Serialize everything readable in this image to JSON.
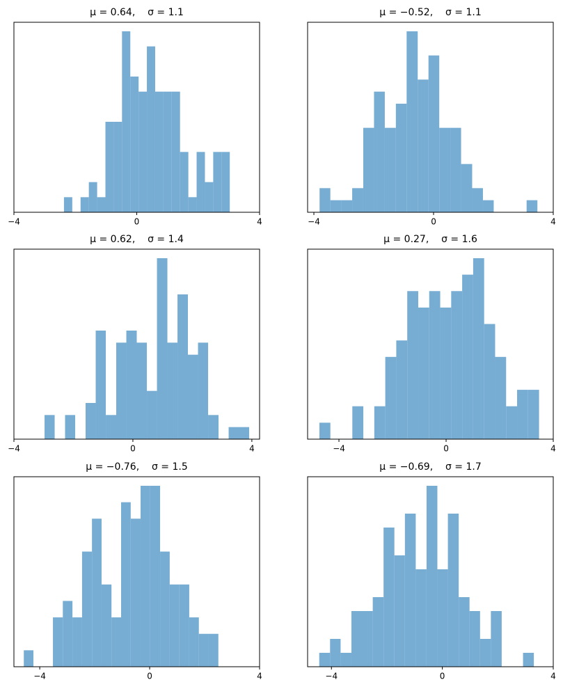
{
  "chart_data": [
    {
      "type": "histogram",
      "title": "μ = 0.64,    σ = 1.1",
      "color": "#77acd3",
      "bins": [
        -2.37,
        -2.1,
        -1.83,
        -1.56,
        -1.29,
        -1.02,
        -0.75,
        -0.48,
        -0.21,
        0.06,
        0.33,
        0.6,
        0.87,
        1.14,
        1.41,
        1.68,
        1.95,
        2.22,
        2.49,
        2.76,
        3.03
      ],
      "values": [
        1,
        0,
        1,
        2,
        1,
        6,
        6,
        12,
        9,
        8,
        11,
        8,
        8,
        8,
        4,
        1,
        4,
        2,
        4,
        4
      ],
      "xlim": [
        -4,
        4
      ],
      "ylim": [
        0,
        12.6
      ],
      "xticks": [
        {
          "value": -4,
          "label": "−4"
        },
        0,
        4
      ]
    },
    {
      "type": "histogram",
      "title": "μ = −0.52,    σ = 1.1",
      "color": "#77acd3",
      "bins": [
        -3.81,
        -3.45,
        -3.08,
        -2.72,
        -2.35,
        -1.99,
        -1.63,
        -1.26,
        -0.9,
        -0.53,
        -0.17,
        0.19,
        0.56,
        0.92,
        1.29,
        1.65,
        2.01,
        2.38,
        2.74,
        3.11,
        3.47
      ],
      "values": [
        2,
        1,
        1,
        2,
        7,
        10,
        7,
        9,
        15,
        11,
        13,
        7,
        7,
        4,
        2,
        1,
        0,
        0,
        0,
        1
      ],
      "xlim": [
        -4.21,
        4
      ],
      "ylim": [
        0,
        15.75
      ],
      "xticks": [
        {
          "value": -4,
          "label": "−4"
        },
        0,
        4
      ]
    },
    {
      "type": "histogram",
      "title": "μ = 0.62,    σ = 1.4",
      "color": "#77acd3",
      "bins": [
        -2.97,
        -2.63,
        -2.28,
        -1.94,
        -1.59,
        -1.25,
        -0.91,
        -0.56,
        -0.22,
        0.13,
        0.47,
        0.81,
        1.16,
        1.5,
        1.85,
        2.19,
        2.53,
        2.88,
        3.22,
        3.57,
        3.91
      ],
      "values": [
        2,
        0,
        2,
        0,
        3,
        9,
        2,
        8,
        9,
        8,
        4,
        15,
        8,
        12,
        7,
        8,
        2,
        0,
        1,
        1
      ],
      "xlim": [
        -4,
        4.26
      ],
      "ylim": [
        0,
        15.75
      ],
      "xticks": [
        {
          "value": -4,
          "label": "−4"
        },
        0,
        4
      ]
    },
    {
      "type": "histogram",
      "title": "μ = 0.27,    σ = 1.6",
      "color": "#77acd3",
      "bins": [
        -4.73,
        -4.32,
        -3.91,
        -3.5,
        -3.09,
        -2.68,
        -2.27,
        -1.86,
        -1.45,
        -1.04,
        -0.63,
        -0.22,
        0.19,
        0.6,
        1.01,
        1.42,
        1.83,
        2.24,
        2.65,
        3.06,
        3.47
      ],
      "values": [
        1,
        0,
        0,
        2,
        0,
        2,
        5,
        6,
        9,
        8,
        9,
        8,
        9,
        10,
        11,
        7,
        5,
        2,
        3,
        3
      ],
      "xlim": [
        -5.17,
        4
      ],
      "ylim": [
        0,
        11.55
      ],
      "xticks": [
        {
          "value": -4,
          "label": "−4"
        },
        0,
        4
      ]
    },
    {
      "type": "histogram",
      "title": "μ = −0.76,    σ = 1.5",
      "color": "#77acd3",
      "bins": [
        -4.58,
        -4.23,
        -3.87,
        -3.52,
        -3.16,
        -2.81,
        -2.46,
        -2.1,
        -1.75,
        -1.39,
        -1.04,
        -0.69,
        -0.33,
        0.02,
        0.38,
        0.73,
        1.08,
        1.44,
        1.79,
        2.15,
        2.5
      ],
      "values": [
        1,
        0,
        0,
        3,
        4,
        3,
        7,
        9,
        5,
        3,
        10,
        9,
        11,
        11,
        7,
        5,
        5,
        3,
        2,
        2
      ],
      "xlim": [
        -4.94,
        4
      ],
      "ylim": [
        0,
        11.55
      ],
      "xticks": [
        {
          "value": -4,
          "label": "−4"
        },
        0,
        4
      ]
    },
    {
      "type": "histogram",
      "title": "μ = −0.69,    σ = 1.7",
      "color": "#77acd3",
      "bins": [
        -4.44,
        -4.05,
        -3.67,
        -3.28,
        -2.89,
        -2.51,
        -2.12,
        -1.73,
        -1.35,
        -0.96,
        -0.57,
        -0.18,
        0.2,
        0.59,
        0.98,
        1.36,
        1.75,
        2.14,
        2.52,
        2.91,
        3.3
      ],
      "values": [
        1,
        2,
        1,
        4,
        4,
        5,
        10,
        8,
        11,
        7,
        13,
        7,
        11,
        5,
        4,
        2,
        4,
        0,
        0,
        1
      ],
      "xlim": [
        -4.86,
        4
      ],
      "ylim": [
        0,
        13.65
      ],
      "xticks": [
        {
          "value": -4,
          "label": "−4"
        },
        0,
        4
      ]
    }
  ]
}
